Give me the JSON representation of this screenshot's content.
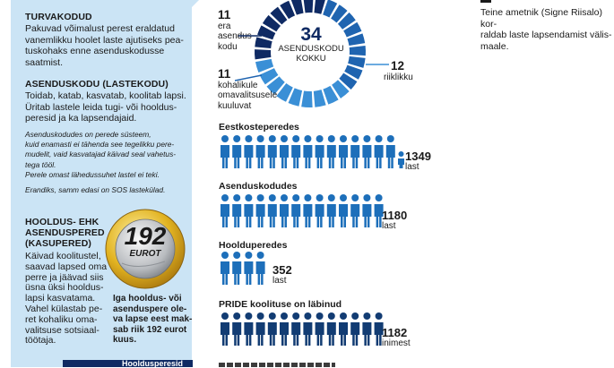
{
  "left": {
    "turvakodu": {
      "title": "TURVAKODUD",
      "lines": [
        "Pakuvad võimalust perest eraldatud",
        "vanemlikku hoolet laste ajutiseks pea-",
        "tuskohaks enne asenduskodusse",
        "saatmist."
      ]
    },
    "asenduskodu": {
      "title": "ASENDUSKODU (LASTEKODU)",
      "lines": [
        "Toidab, katab, kasvatab, koolitab lapsi.",
        "Üritab lastele leida tugi- või hooldus-",
        "peresid ja ka lapsendajaid."
      ],
      "italic_lines": [
        "Asenduskodudes on perede süsteem,",
        "kuid enamasti ei tähenda see tegelikku pere-",
        "mudelit, vaid kasvatajad käivad seal vahetus-",
        "tega tööl.",
        "Perele omast lähedussuhet lastel ei teki.",
        "Erandiks, samm edasi on SOS lastekülad."
      ]
    },
    "hooldus": {
      "title_lines": [
        "HOOLDUS- EHK",
        "ASENDUSPERED",
        "(KASUPERED)"
      ],
      "lines": [
        "Käivad koolitustel,",
        "saavad lapsed oma",
        "perre ja jäävad siis",
        "üsna üksi hooldus-",
        "lapsi kasvatama.",
        "Vahel külastab pe-",
        "ret kohaliku oma-",
        "valitsuse sotsiaal-",
        "töötaja."
      ]
    },
    "coin": {
      "amount": "192",
      "currency": "EUROT"
    },
    "coin_caption": [
      "Iga hooldus- või",
      "asenduspere ole-",
      "va lapse eest mak-",
      "sab riik 192 eurot",
      "kuus."
    ],
    "bottom_tab": "Hooldusperesid"
  },
  "donut": {
    "center_number": "34",
    "center_lines": [
      "ASENDUSKODU",
      "KOKKU"
    ],
    "segments": [
      {
        "value": 11,
        "label_lines": [
          "era",
          "asendus-",
          "kodu"
        ],
        "color": "#0f2a63"
      },
      {
        "value": 11,
        "label_lines": [
          "kohalikule",
          "omavalitsusele",
          "kuuluvat"
        ],
        "color": "#1f64b0"
      },
      {
        "value": 12,
        "label_lines": [
          "riiklikku"
        ],
        "color": "#3a8fd6"
      }
    ]
  },
  "sections": [
    {
      "title": "Eestkosteperedes",
      "number": "1349",
      "unit": "last",
      "people": 15,
      "color": "#1d6fba"
    },
    {
      "title": "Asenduskodudes",
      "number": "1180",
      "unit": "last",
      "people": 14,
      "color": "#1d6fba"
    },
    {
      "title": "Hoolduperedes",
      "number": "352",
      "unit": "last",
      "people": 4,
      "color": "#1d6fba"
    },
    {
      "title": "PRIDE koolituse on läbinud",
      "number": "1182",
      "unit": "inimest",
      "people": 14,
      "color": "#123c73"
    }
  ],
  "right_text": [
    "Teine ametnik (Signe Riisalo) kor-",
    "raldab laste lapsendamist välis-",
    "maale."
  ]
}
